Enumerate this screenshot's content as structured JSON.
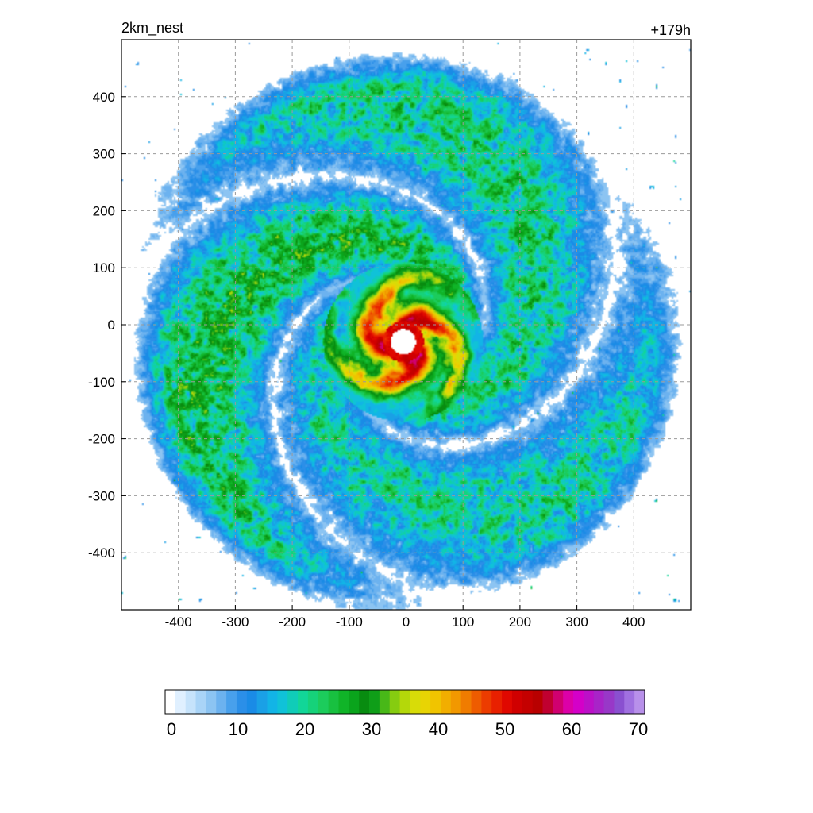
{
  "chart_data": {
    "type": "heatmap",
    "title_left": "2km_nest",
    "title_right": "+179h",
    "xlabel": "",
    "ylabel": "",
    "xlim": [
      -500,
      500
    ],
    "ylim": [
      -500,
      500
    ],
    "x_ticks": [
      -400,
      -300,
      -200,
      -100,
      0,
      100,
      200,
      300,
      400
    ],
    "y_ticks": [
      400,
      300,
      200,
      100,
      0,
      -100,
      -200,
      -300,
      -400
    ],
    "grid": true,
    "grid_style": "dashed",
    "field": {
      "description_free": true,
      "eye_center": [
        -5,
        -30
      ],
      "eye_radius": 22,
      "eyewall_max": 55,
      "core_max": 40,
      "spiral_bands": [
        {
          "start_radius": 120,
          "end_radius": 420,
          "turns": 0.75,
          "intensity": 28
        },
        {
          "start_radius": 140,
          "end_radius": 450,
          "turns": 0.7,
          "intensity": 24
        },
        {
          "start_radius": 160,
          "end_radius": 430,
          "turns": 0.65,
          "intensity": 22
        }
      ]
    },
    "colorbar": {
      "min": 0,
      "max": 70,
      "ticks": [
        0,
        10,
        20,
        30,
        40,
        50,
        60,
        70
      ],
      "colors": [
        "#ffffff",
        "#e0f0ff",
        "#c6e3fb",
        "#a9d4f7",
        "#8cc4f2",
        "#6cb2ef",
        "#48a0ec",
        "#2b8fe8",
        "#1a8be6",
        "#1aa0e6",
        "#12b4e6",
        "#10c2d8",
        "#10ccb8",
        "#12d698",
        "#16d27a",
        "#1ccc5c",
        "#18c040",
        "#10b428",
        "#0aa41c",
        "#088c10",
        "#0f9e18",
        "#48b818",
        "#86cc10",
        "#b4d80a",
        "#d8dc08",
        "#e8d404",
        "#f0c400",
        "#f2ae00",
        "#f29800",
        "#f07c00",
        "#ee5c00",
        "#ec3c00",
        "#e82000",
        "#e00800",
        "#d00000",
        "#c40000",
        "#b80000",
        "#c00030",
        "#d00070",
        "#dc00a8",
        "#d400c8",
        "#bc10c8",
        "#a824c8",
        "#9838c8",
        "#8a50d0",
        "#a070e0",
        "#b890ea"
      ]
    }
  }
}
